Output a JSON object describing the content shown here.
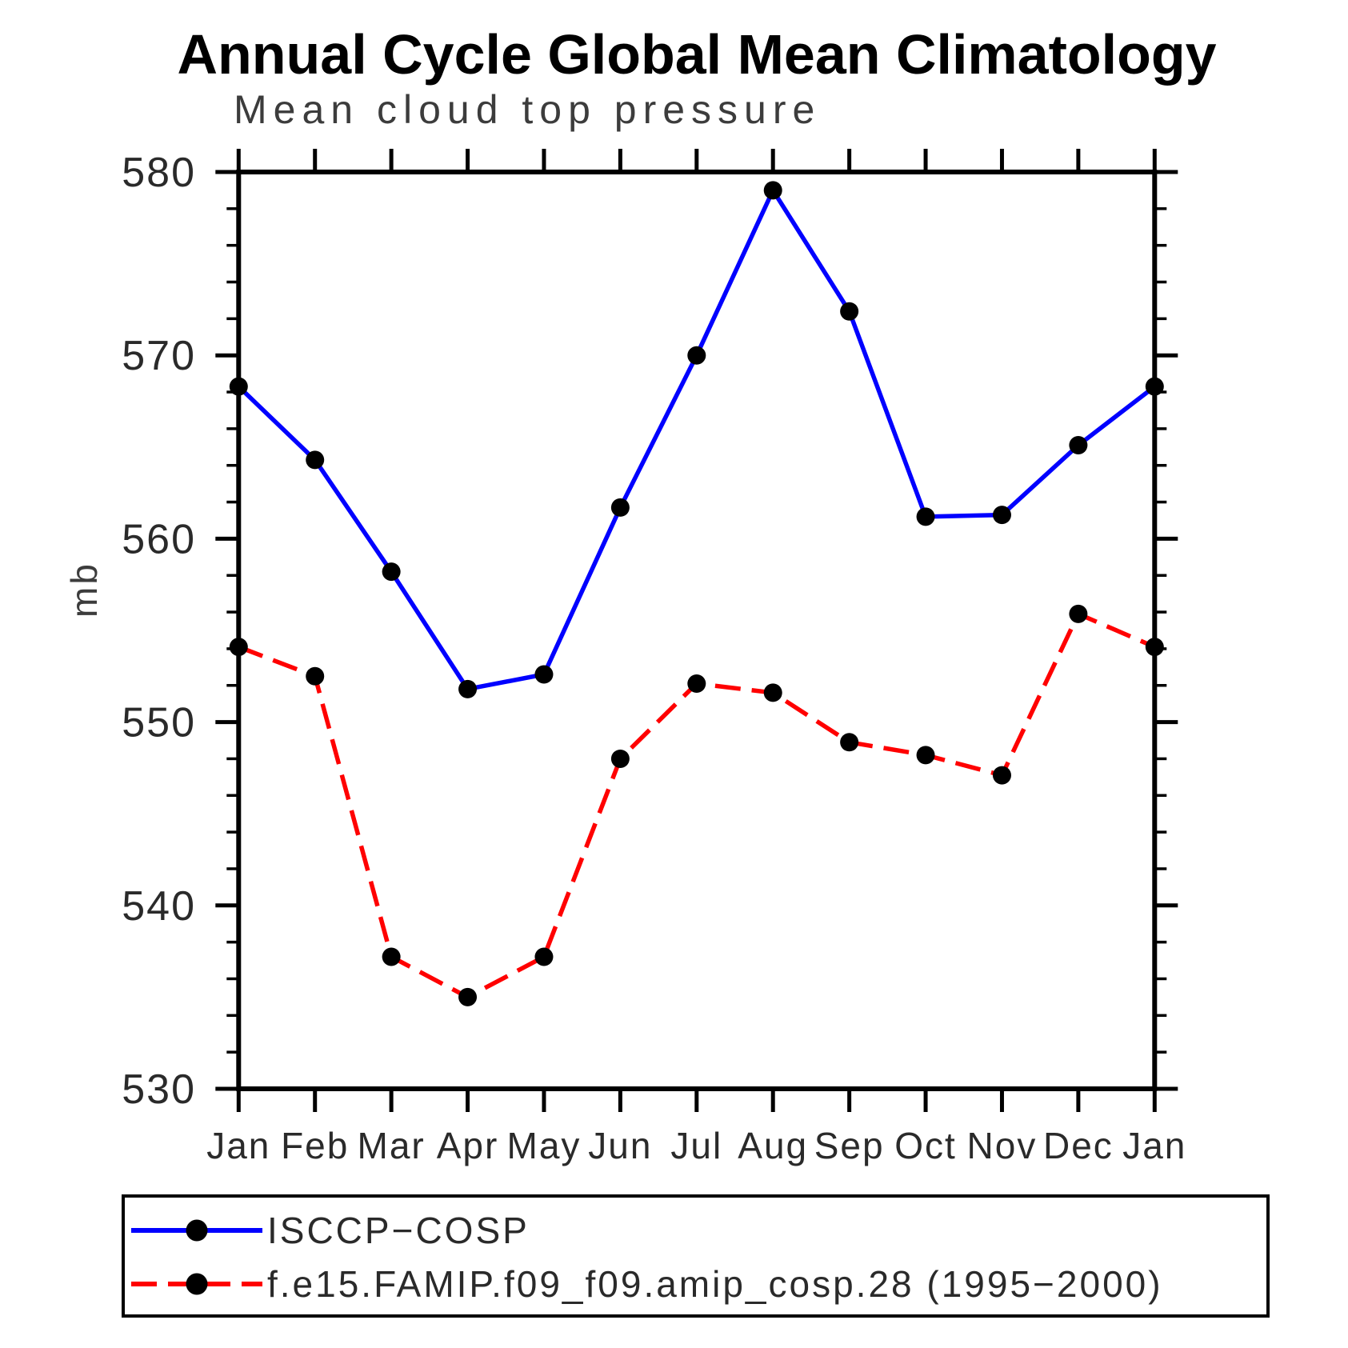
{
  "title": "Annual Cycle Global Mean Climatology",
  "chart_data": {
    "type": "line",
    "title": "Annual Cycle Global Mean Climatology",
    "subtitle": "Mean cloud top pressure",
    "ylabel": "mb",
    "xlabel": "",
    "categories": [
      "Jan",
      "Feb",
      "Mar",
      "Apr",
      "May",
      "Jun",
      "Jul",
      "Aug",
      "Sep",
      "Oct",
      "Nov",
      "Dec",
      "Jan"
    ],
    "ylim": [
      530,
      580
    ],
    "ytick_major": 10,
    "ytick_minor": 2,
    "grid": false,
    "legend_position": "bottom-left-box",
    "colors": {
      "frame": "#000000",
      "marker": "#000000",
      "obs_line": "#0000ff",
      "model_line": "#ff0000"
    },
    "series": [
      {
        "name": "ISCCP−COSP",
        "color": "#0000ff",
        "style": "solid",
        "marker": "circle",
        "marker_color": "#000000",
        "values": [
          568.3,
          564.3,
          558.2,
          551.8,
          552.6,
          561.7,
          570.0,
          579.0,
          572.4,
          561.2,
          561.3,
          565.1,
          568.3
        ]
      },
      {
        "name": "f.e15.FAMIP.f09_f09.amip_cosp.28 (1995−2000)",
        "color": "#ff0000",
        "style": "dashed",
        "marker": "circle",
        "marker_color": "#000000",
        "values": [
          554.1,
          552.5,
          537.2,
          535.0,
          537.2,
          548.0,
          552.1,
          551.6,
          548.9,
          548.2,
          547.1,
          555.9,
          554.1
        ]
      }
    ],
    "y_major_tick_labels": [
      "530",
      "540",
      "550",
      "560",
      "570",
      "580"
    ]
  }
}
